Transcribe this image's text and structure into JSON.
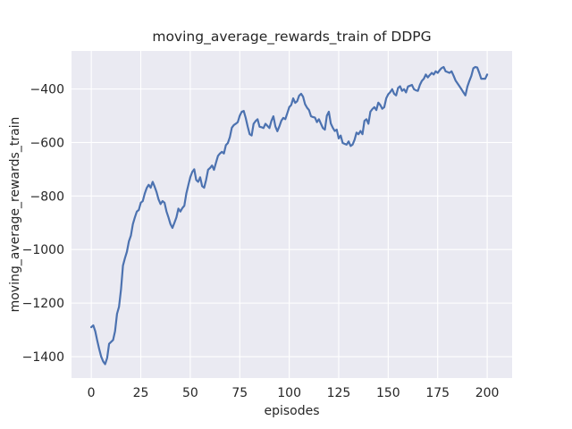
{
  "chart_data": {
    "type": "line",
    "title": "moving_average_rewards_train of DDPG",
    "xlabel": "episodes",
    "ylabel": "moving_average_rewards_train",
    "x_ticks": [
      0,
      25,
      50,
      75,
      100,
      125,
      150,
      175,
      200
    ],
    "y_ticks": [
      -400,
      -600,
      -800,
      -1000,
      -1200,
      -1400
    ],
    "xlim": [
      -10,
      212.6
    ],
    "ylim": [
      -1480,
      -258
    ],
    "grid": true,
    "legend_position": "none",
    "style": {
      "figure_bg": "#ffffff",
      "plot_bg": "#eaeaf2",
      "grid_color": "#ffffff",
      "line_color": "#4c72b0",
      "text_color": "#262626"
    },
    "series": [
      {
        "name": "moving_average_rewards_train",
        "color": "#4c72b0",
        "x": [
          0,
          1,
          2,
          3,
          4,
          5,
          6,
          7,
          8,
          9,
          10,
          11,
          12,
          13,
          14,
          15,
          16,
          17,
          18,
          19,
          20,
          21,
          22,
          23,
          24,
          25,
          26,
          27,
          28,
          29,
          30,
          31,
          32,
          33,
          34,
          35,
          36,
          37,
          38,
          39,
          40,
          41,
          42,
          43,
          44,
          45,
          46,
          47,
          48,
          49,
          50,
          51,
          52,
          53,
          54,
          55,
          56,
          57,
          58,
          59,
          60,
          61,
          62,
          63,
          64,
          65,
          66,
          67,
          68,
          69,
          70,
          71,
          72,
          73,
          74,
          75,
          76,
          77,
          78,
          79,
          80,
          81,
          82,
          83,
          84,
          85,
          86,
          87,
          88,
          89,
          90,
          91,
          92,
          93,
          94,
          95,
          96,
          97,
          98,
          99,
          100,
          101,
          102,
          103,
          104,
          105,
          106,
          107,
          108,
          109,
          110,
          111,
          112,
          113,
          114,
          115,
          116,
          117,
          118,
          119,
          120,
          121,
          122,
          123,
          124,
          125,
          126,
          127,
          128,
          129,
          130,
          131,
          132,
          133,
          134,
          135,
          136,
          137,
          138,
          139,
          140,
          141,
          142,
          143,
          144,
          145,
          146,
          147,
          148,
          149,
          150,
          151,
          152,
          153,
          154,
          155,
          156,
          157,
          158,
          159,
          160,
          161,
          162,
          163,
          164,
          165,
          166,
          167,
          168,
          169,
          170,
          171,
          172,
          173,
          174,
          175,
          176,
          177,
          178,
          179,
          180,
          181,
          182,
          183,
          184,
          185,
          186,
          187,
          188,
          189,
          190,
          191,
          192,
          193,
          194,
          195,
          196,
          197,
          198,
          199,
          200
        ],
        "y": [
          -1290,
          -1283,
          -1305,
          -1340,
          -1372,
          -1400,
          -1418,
          -1428,
          -1405,
          -1352,
          -1345,
          -1338,
          -1305,
          -1240,
          -1214,
          -1150,
          -1060,
          -1032,
          -1008,
          -969,
          -948,
          -905,
          -880,
          -858,
          -852,
          -825,
          -819,
          -791,
          -770,
          -758,
          -769,
          -747,
          -765,
          -786,
          -813,
          -830,
          -819,
          -825,
          -858,
          -880,
          -905,
          -919,
          -900,
          -880,
          -847,
          -858,
          -845,
          -836,
          -791,
          -760,
          -730,
          -710,
          -700,
          -740,
          -747,
          -730,
          -763,
          -769,
          -740,
          -702,
          -695,
          -686,
          -702,
          -675,
          -650,
          -641,
          -635,
          -641,
          -610,
          -602,
          -580,
          -545,
          -535,
          -530,
          -524,
          -500,
          -485,
          -482,
          -508,
          -540,
          -569,
          -574,
          -530,
          -520,
          -513,
          -541,
          -543,
          -546,
          -530,
          -538,
          -546,
          -519,
          -502,
          -540,
          -558,
          -540,
          -519,
          -508,
          -513,
          -491,
          -468,
          -460,
          -435,
          -452,
          -446,
          -425,
          -418,
          -429,
          -457,
          -470,
          -479,
          -502,
          -505,
          -507,
          -524,
          -513,
          -530,
          -546,
          -552,
          -500,
          -485,
          -529,
          -545,
          -557,
          -552,
          -585,
          -574,
          -602,
          -605,
          -608,
          -596,
          -613,
          -608,
          -590,
          -563,
          -569,
          -557,
          -569,
          -519,
          -513,
          -530,
          -485,
          -475,
          -468,
          -479,
          -451,
          -460,
          -474,
          -468,
          -435,
          -420,
          -412,
          -401,
          -418,
          -424,
          -396,
          -390,
          -407,
          -401,
          -413,
          -391,
          -388,
          -385,
          -401,
          -405,
          -407,
          -385,
          -370,
          -362,
          -346,
          -357,
          -348,
          -340,
          -346,
          -334,
          -340,
          -330,
          -322,
          -318,
          -334,
          -337,
          -340,
          -334,
          -350,
          -368,
          -379,
          -390,
          -401,
          -413,
          -424,
          -391,
          -370,
          -351,
          -323,
          -318,
          -320,
          -340,
          -362,
          -362,
          -362,
          -346
        ]
      }
    ]
  }
}
